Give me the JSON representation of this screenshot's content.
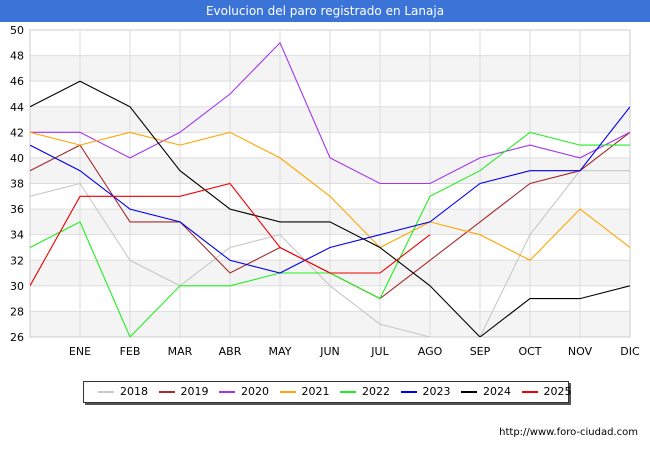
{
  "title": "Evolucion del paro registrado en Lanaja",
  "source": "http://www.foro-ciudad.com",
  "chart_data": {
    "type": "line",
    "title": "Evolucion del paro registrado en Lanaja",
    "categories": [
      "",
      "ENE",
      "FEB",
      "MAR",
      "ABR",
      "MAY",
      "JUN",
      "JUL",
      "AGO",
      "SEP",
      "OCT",
      "NOV",
      "DIC"
    ],
    "ylim": [
      26,
      50
    ],
    "yticks": [
      26,
      28,
      30,
      32,
      34,
      36,
      38,
      40,
      42,
      44,
      46,
      48,
      50
    ],
    "grid": true,
    "legend_position": "bottom",
    "series": [
      {
        "name": "2018",
        "color": "#c8c8c8",
        "values": [
          37,
          38,
          32,
          30,
          33,
          34,
          30,
          27,
          26,
          26,
          34,
          39,
          39
        ]
      },
      {
        "name": "2019",
        "color": "#a52a2a",
        "values": [
          39,
          41,
          35,
          35,
          31,
          33,
          31,
          29,
          32,
          35,
          38,
          39,
          42
        ]
      },
      {
        "name": "2020",
        "color": "#a335ee",
        "values": [
          42,
          42,
          40,
          42,
          45,
          49,
          40,
          38,
          38,
          40,
          41,
          40,
          42
        ]
      },
      {
        "name": "2021",
        "color": "#ffa500",
        "values": [
          42,
          41,
          42,
          41,
          42,
          40,
          37,
          33,
          35,
          34,
          32,
          36,
          33
        ]
      },
      {
        "name": "2022",
        "color": "#22ee22",
        "values": [
          33,
          35,
          26,
          30,
          30,
          31,
          31,
          29,
          37,
          39,
          42,
          41,
          41
        ]
      },
      {
        "name": "2023",
        "color": "#0000ee",
        "values": [
          41,
          39,
          36,
          35,
          32,
          31,
          33,
          34,
          35,
          38,
          39,
          39,
          44
        ]
      },
      {
        "name": "2024",
        "color": "#000000",
        "values": [
          44,
          46,
          44,
          39,
          36,
          35,
          35,
          33,
          30,
          26,
          29,
          29,
          30
        ]
      },
      {
        "name": "2025",
        "color": "#ee0000",
        "values": [
          30,
          37,
          37,
          37,
          38,
          33,
          31,
          31,
          34,
          null,
          null,
          null,
          null
        ]
      }
    ]
  }
}
